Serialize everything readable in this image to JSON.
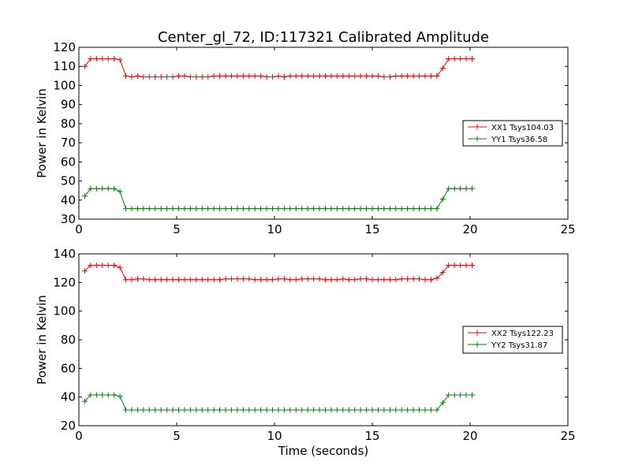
{
  "figure": {
    "title": "Center_gl_72, ID:117321 Calibrated Amplitude",
    "xlabel": "Time (seconds)"
  },
  "chart_data": [
    {
      "type": "line",
      "ylabel": "Power in Kelvin",
      "xlim": [
        0,
        25
      ],
      "ylim": [
        30,
        120
      ],
      "xticks": [
        0,
        5,
        10,
        15,
        20,
        25
      ],
      "yticks": [
        30,
        40,
        50,
        60,
        70,
        80,
        90,
        100,
        110,
        120
      ],
      "legend_position": "center-right",
      "series": [
        {
          "name": "XX1 Tsys104.03",
          "color": "#ff0000",
          "x": [
            0.3,
            0.6,
            0.9,
            1.2,
            1.5,
            1.8,
            2.1,
            2.4,
            2.7,
            3.0,
            3.3,
            3.6,
            3.9,
            4.2,
            4.5,
            4.8,
            5.1,
            5.4,
            5.7,
            6.0,
            6.3,
            6.6,
            6.9,
            7.2,
            7.5,
            7.8,
            8.1,
            8.4,
            8.7,
            9.0,
            9.3,
            9.6,
            9.9,
            10.2,
            10.5,
            10.8,
            11.1,
            11.4,
            11.7,
            12.0,
            12.3,
            12.6,
            12.9,
            13.2,
            13.5,
            13.8,
            14.1,
            14.4,
            14.7,
            15.0,
            15.3,
            15.6,
            15.9,
            16.2,
            16.5,
            16.8,
            17.1,
            17.4,
            17.7,
            18.0,
            18.3,
            18.6,
            18.9,
            19.2,
            19.5,
            19.8,
            20.1
          ],
          "y": [
            110,
            114,
            114,
            114,
            114,
            114,
            113.5,
            105,
            104.5,
            105,
            104.5,
            104.5,
            104.5,
            104.5,
            104.5,
            104.5,
            105,
            105,
            104.5,
            104.5,
            104.5,
            104.5,
            105,
            105,
            105,
            105,
            105,
            105,
            105,
            105,
            105,
            104.5,
            104.5,
            105,
            104.5,
            105,
            105,
            105,
            105,
            105,
            105,
            105,
            105,
            105,
            105,
            105,
            105,
            105,
            105,
            105,
            105,
            104.5,
            104.5,
            105,
            105,
            105,
            105,
            105,
            105,
            105,
            105,
            109,
            114,
            114,
            114,
            114,
            114
          ]
        },
        {
          "name": "YY1 Tsys36.58",
          "color": "#008000",
          "x": [
            0.3,
            0.6,
            0.9,
            1.2,
            1.5,
            1.8,
            2.1,
            2.4,
            2.7,
            3.0,
            3.3,
            3.6,
            3.9,
            4.2,
            4.5,
            4.8,
            5.1,
            5.4,
            5.7,
            6.0,
            6.3,
            6.6,
            6.9,
            7.2,
            7.5,
            7.8,
            8.1,
            8.4,
            8.7,
            9.0,
            9.3,
            9.6,
            9.9,
            10.2,
            10.5,
            10.8,
            11.1,
            11.4,
            11.7,
            12.0,
            12.3,
            12.6,
            12.9,
            13.2,
            13.5,
            13.8,
            14.1,
            14.4,
            14.7,
            15.0,
            15.3,
            15.6,
            15.9,
            16.2,
            16.5,
            16.8,
            17.1,
            17.4,
            17.7,
            18.0,
            18.3,
            18.6,
            18.9,
            19.2,
            19.5,
            19.8,
            20.1
          ],
          "y": [
            42,
            46,
            46,
            46,
            46,
            46,
            44.5,
            35.5,
            35.5,
            35.5,
            35.5,
            35.5,
            35.5,
            35.5,
            35.5,
            35.5,
            35.5,
            35.5,
            35.5,
            35.5,
            35.5,
            35.5,
            35.5,
            35.5,
            35.5,
            35.5,
            35.5,
            35.5,
            35.5,
            35.5,
            35.5,
            35.5,
            35.5,
            35.5,
            35.5,
            35.5,
            35.5,
            35.5,
            35.5,
            35.5,
            35.5,
            35.5,
            35.5,
            35.5,
            35.5,
            35.5,
            35.5,
            35.5,
            35.5,
            35.5,
            35.5,
            35.5,
            35.5,
            35.5,
            35.5,
            35.5,
            35.5,
            35.5,
            35.5,
            35.5,
            35.5,
            40.5,
            46,
            46,
            46,
            46,
            46
          ]
        }
      ]
    },
    {
      "type": "line",
      "ylabel": "Power in Kelvin",
      "xlim": [
        0,
        25
      ],
      "ylim": [
        20,
        140
      ],
      "xticks": [
        0,
        5,
        10,
        15,
        20,
        25
      ],
      "yticks": [
        20,
        40,
        60,
        80,
        100,
        120,
        140
      ],
      "legend_position": "center-right",
      "series": [
        {
          "name": "XX2 Tsys122.23",
          "color": "#ff0000",
          "x": [
            0.3,
            0.6,
            0.9,
            1.2,
            1.5,
            1.8,
            2.1,
            2.4,
            2.7,
            3.0,
            3.3,
            3.6,
            3.9,
            4.2,
            4.5,
            4.8,
            5.1,
            5.4,
            5.7,
            6.0,
            6.3,
            6.6,
            6.9,
            7.2,
            7.5,
            7.8,
            8.1,
            8.4,
            8.7,
            9.0,
            9.3,
            9.6,
            9.9,
            10.2,
            10.5,
            10.8,
            11.1,
            11.4,
            11.7,
            12.0,
            12.3,
            12.6,
            12.9,
            13.2,
            13.5,
            13.8,
            14.1,
            14.4,
            14.7,
            15.0,
            15.3,
            15.6,
            15.9,
            16.2,
            16.5,
            16.8,
            17.1,
            17.4,
            17.7,
            18.0,
            18.3,
            18.6,
            18.9,
            19.2,
            19.5,
            19.8,
            20.1
          ],
          "y": [
            128,
            132,
            132,
            132,
            132,
            132,
            130.5,
            122,
            122,
            122.5,
            122.5,
            122,
            122,
            122,
            122,
            122,
            122,
            122,
            122,
            122,
            122,
            122,
            122,
            122,
            122.5,
            122.5,
            122.5,
            122.5,
            122.5,
            122,
            122,
            122,
            122,
            122.5,
            122.5,
            122,
            122,
            122.5,
            122.5,
            122.5,
            122.5,
            122,
            122,
            122,
            122.5,
            122,
            122,
            122.5,
            122.5,
            122,
            122,
            122,
            122,
            122,
            122.5,
            122.5,
            122.5,
            122.5,
            122,
            122,
            123,
            127,
            132,
            132,
            132,
            132,
            132
          ]
        },
        {
          "name": "YY2 Tsys31.87",
          "color": "#008000",
          "x": [
            0.3,
            0.6,
            0.9,
            1.2,
            1.5,
            1.8,
            2.1,
            2.4,
            2.7,
            3.0,
            3.3,
            3.6,
            3.9,
            4.2,
            4.5,
            4.8,
            5.1,
            5.4,
            5.7,
            6.0,
            6.3,
            6.6,
            6.9,
            7.2,
            7.5,
            7.8,
            8.1,
            8.4,
            8.7,
            9.0,
            9.3,
            9.6,
            9.9,
            10.2,
            10.5,
            10.8,
            11.1,
            11.4,
            11.7,
            12.0,
            12.3,
            12.6,
            12.9,
            13.2,
            13.5,
            13.8,
            14.1,
            14.4,
            14.7,
            15.0,
            15.3,
            15.6,
            15.9,
            16.2,
            16.5,
            16.8,
            17.1,
            17.4,
            17.7,
            18.0,
            18.3,
            18.6,
            18.9,
            19.2,
            19.5,
            19.8,
            20.1
          ],
          "y": [
            37,
            41.5,
            41.5,
            41.5,
            41.5,
            41.5,
            40.5,
            31,
            31,
            31,
            31,
            31,
            31,
            31,
            31,
            31,
            31,
            31,
            31,
            31,
            31,
            31,
            31,
            31,
            31,
            31,
            31,
            31,
            31,
            31,
            31,
            31,
            31,
            31,
            31,
            31,
            31,
            31,
            31,
            31,
            31,
            31,
            31,
            31,
            31,
            31,
            31,
            31,
            31,
            31,
            31,
            31,
            31,
            31,
            31,
            31,
            31,
            31,
            31,
            31,
            31,
            36,
            41.5,
            41.5,
            41.5,
            41.5,
            41.5
          ]
        }
      ]
    }
  ]
}
